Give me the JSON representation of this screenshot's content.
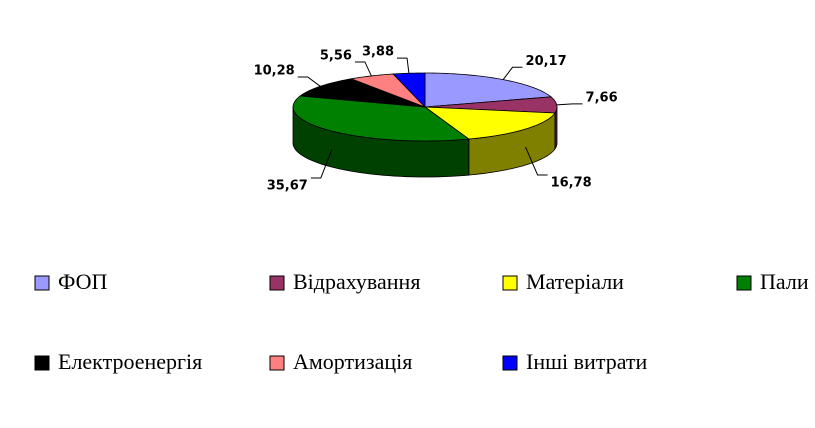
{
  "chart_data": {
    "type": "pie",
    "categories": [
      "ФОП",
      "Відрахування",
      "Матеріали",
      "Пали",
      "Електроенергія",
      "Амортизація",
      "Інші витрати"
    ],
    "values": [
      20.17,
      7.66,
      16.78,
      35.67,
      10.28,
      5.56,
      3.88
    ],
    "value_labels": [
      "20,17",
      "7,66",
      "16,78",
      "35,67",
      "10,28",
      "5,56",
      "3,88"
    ],
    "colors": [
      "#9999ff",
      "#993366",
      "#ffff00",
      "#008000",
      "#000000",
      "#ff8080",
      "#0000ff"
    ],
    "legend": "bottom"
  }
}
